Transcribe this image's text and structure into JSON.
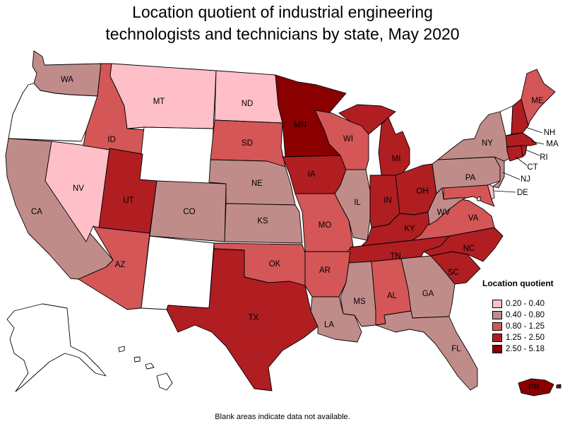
{
  "title_line1": "Location quotient of industrial engineering",
  "title_line2": "technologists and technicians by state, May 2020",
  "footnote": "Blank areas indicate data not available.",
  "legend": {
    "title": "Location quotient",
    "bins": [
      {
        "label": "0.20 - 0.40",
        "color": "#ffbfc8"
      },
      {
        "label": "0.40 - 0.80",
        "color": "#c08c8a"
      },
      {
        "label": "0.80 - 1.25",
        "color": "#d45657"
      },
      {
        "label": "1.25 - 2.50",
        "color": "#b01e22"
      },
      {
        "label": "2.50 - 5.18",
        "color": "#8a0000"
      }
    ],
    "no_data_color": "#ffffff"
  },
  "states": {
    "WA": {
      "label": "WA",
      "bin": 1
    },
    "OR": {
      "label": "",
      "bin": null
    },
    "CA": {
      "label": "CA",
      "bin": 1
    },
    "NV": {
      "label": "NV",
      "bin": 0
    },
    "ID": {
      "label": "ID",
      "bin": 2
    },
    "MT": {
      "label": "MT",
      "bin": 0
    },
    "WY": {
      "label": "",
      "bin": null
    },
    "UT": {
      "label": "UT",
      "bin": 3
    },
    "AZ": {
      "label": "AZ",
      "bin": 2
    },
    "CO": {
      "label": "CO",
      "bin": 1
    },
    "NM": {
      "label": "",
      "bin": null
    },
    "ND": {
      "label": "ND",
      "bin": 0
    },
    "SD": {
      "label": "SD",
      "bin": 2
    },
    "NE": {
      "label": "NE",
      "bin": 1
    },
    "KS": {
      "label": "KS",
      "bin": 1
    },
    "OK": {
      "label": "OK",
      "bin": 2
    },
    "TX": {
      "label": "TX",
      "bin": 3
    },
    "MN": {
      "label": "MN",
      "bin": 4
    },
    "IA": {
      "label": "IA",
      "bin": 3
    },
    "MO": {
      "label": "MO",
      "bin": 2
    },
    "AR": {
      "label": "AR",
      "bin": 2
    },
    "LA": {
      "label": "LA",
      "bin": 1
    },
    "WI": {
      "label": "WI",
      "bin": 2
    },
    "IL": {
      "label": "IL",
      "bin": 1
    },
    "MI": {
      "label": "MI",
      "bin": 3
    },
    "IN": {
      "label": "IN",
      "bin": 3
    },
    "OH": {
      "label": "OH",
      "bin": 3
    },
    "KY": {
      "label": "KY",
      "bin": 3
    },
    "TN": {
      "label": "TN",
      "bin": 3
    },
    "MS": {
      "label": "MS",
      "bin": 1
    },
    "AL": {
      "label": "AL",
      "bin": 2
    },
    "GA": {
      "label": "GA",
      "bin": 1
    },
    "FL": {
      "label": "FL",
      "bin": 1
    },
    "SC": {
      "label": "SC",
      "bin": 3
    },
    "NC": {
      "label": "NC",
      "bin": 3
    },
    "VA": {
      "label": "VA",
      "bin": 2
    },
    "WV": {
      "label": "WV",
      "bin": 1
    },
    "PA": {
      "label": "PA",
      "bin": 1
    },
    "NY": {
      "label": "NY",
      "bin": 1
    },
    "NJ": {
      "label": "NJ",
      "bin": 1
    },
    "DE": {
      "label": "DE",
      "bin": 0
    },
    "MD": {
      "label": "",
      "bin": 2
    },
    "DC": {
      "label": "",
      "bin": null
    },
    "CT": {
      "label": "CT",
      "bin": 3
    },
    "RI": {
      "label": "RI",
      "bin": 3
    },
    "MA": {
      "label": "MA",
      "bin": 3
    },
    "VT": {
      "label": "",
      "bin": null
    },
    "NH": {
      "label": "NH",
      "bin": 3
    },
    "ME": {
      "label": "ME",
      "bin": 2
    },
    "AK": {
      "label": "",
      "bin": null
    },
    "HI": {
      "label": "",
      "bin": null
    },
    "PR": {
      "label": "PR",
      "bin": 4
    }
  }
}
